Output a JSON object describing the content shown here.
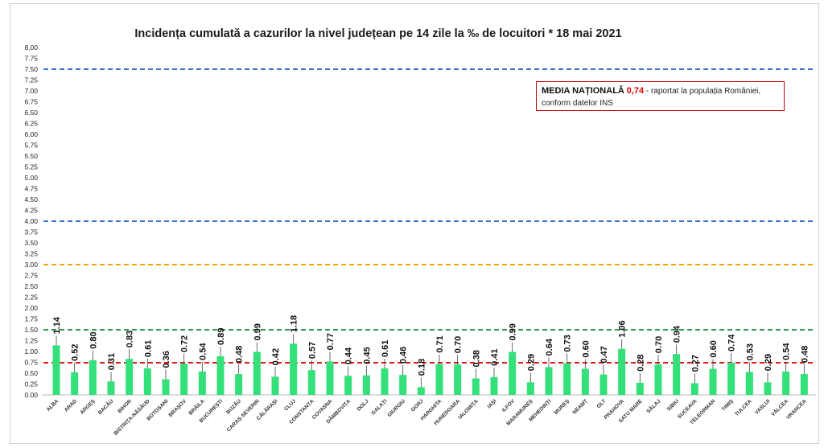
{
  "chart_data": {
    "type": "bar",
    "title": "Incidența cumulată a cazurilor la nivel județean pe 14 zile la ‰ de locuitori *  18 mai 2021",
    "xlabel": "",
    "ylabel": "",
    "ylim": [
      0,
      8
    ],
    "ytick_step": 0.25,
    "grid": false,
    "bar_color": "#33e07a",
    "categories": [
      "ALBA",
      "ARAD",
      "ARGEȘ",
      "BACĂU",
      "BIHOR",
      "BISTRIȚA-NĂSĂUD",
      "BOTOȘANI",
      "BRAȘOV",
      "BRĂILA",
      "BUCUREȘTI",
      "BUZĂU",
      "CARAȘ-SEVERIN",
      "CĂLĂRAȘI",
      "CLUJ",
      "CONSTANȚA",
      "COVASNA",
      "DÂMBOVIȚA",
      "DOLJ",
      "GALAȚI",
      "GIURGIU",
      "GORJ",
      "HARGHITA",
      "HUNEDOARA",
      "IALOMIȚA",
      "IAȘI",
      "ILFOV",
      "MARAMUREȘ",
      "MEHEDINȚI",
      "MUREȘ",
      "NEAMȚ",
      "OLT",
      "PRAHOVA",
      "SATU MARE",
      "SĂLAJ",
      "SIBIU",
      "SUCEAVA",
      "TELEORMAN",
      "TIMIȘ",
      "TULCEA",
      "VASLUI",
      "VÂLCEA",
      "VRANCEA"
    ],
    "values": [
      1.14,
      0.52,
      0.8,
      0.31,
      0.83,
      0.61,
      0.36,
      0.72,
      0.54,
      0.89,
      0.48,
      0.99,
      0.42,
      1.18,
      0.57,
      0.77,
      0.44,
      0.45,
      0.61,
      0.46,
      0.18,
      0.71,
      0.7,
      0.38,
      0.41,
      0.99,
      0.29,
      0.64,
      0.73,
      0.6,
      0.47,
      1.06,
      0.28,
      0.7,
      0.94,
      0.27,
      0.6,
      0.74,
      0.53,
      0.29,
      0.54,
      0.48
    ],
    "value_labels": [
      "1.14",
      "0.52",
      "0.80",
      "0.31",
      "0.83",
      "0.61",
      "0.36",
      "0.72",
      "0.54",
      "0.89",
      "0.48",
      "0.99",
      "0.42",
      "1.18",
      "0.57",
      "0.77",
      "0.44",
      "0.45",
      "0.61",
      "0.46",
      "0.18",
      "0.71",
      "0.70",
      "0.38",
      "0.41",
      "0.99",
      "0.29",
      "0.64",
      "0.73",
      "0.60",
      "0.47",
      "1.06",
      "0.28",
      "0.70",
      "0.94",
      "0.27",
      "0.60",
      "0.74",
      "0.53",
      "0.29",
      "0.54",
      "0.48"
    ],
    "reference_lines": [
      {
        "value": 7.5,
        "color": "#3a78c8"
      },
      {
        "value": 4.0,
        "color": "#3a78c8"
      },
      {
        "value": 3.0,
        "color": "#f0a800"
      },
      {
        "value": 1.5,
        "color": "#2e9a50"
      },
      {
        "value": 0.74,
        "color": "#d81e1e"
      }
    ],
    "annotation": {
      "label": "MEDIA NAȚIONALĂ",
      "value": "0,74",
      "text": " - raportat la populația României,",
      "text2": "conform datelor INS"
    }
  }
}
